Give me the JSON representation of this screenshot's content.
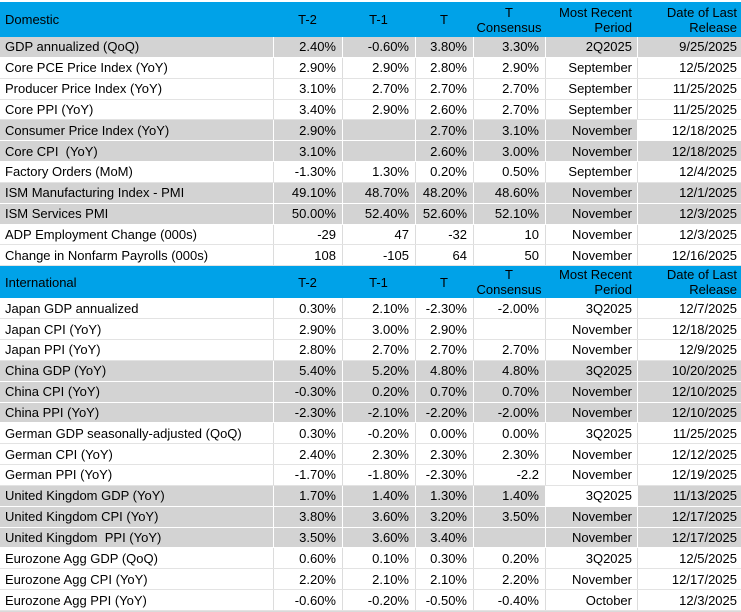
{
  "columns": {
    "t2": "T-2",
    "t1": "T-1",
    "t": "T",
    "consensus_line1": "T",
    "consensus_line2": "Consensus",
    "period_line1": "Most Recent",
    "period_line2": "Period",
    "release_line1": "Date of Last",
    "release_line2": "Release"
  },
  "colors": {
    "header_bg": "#00A2E8",
    "shaded_row_bg": "#D3D3D3",
    "text": "#000000"
  },
  "sections": [
    {
      "title": "Domestic",
      "rows": [
        {
          "label": "GDP annualized (QoQ)",
          "t2": "2.40%",
          "t1": "-0.60%",
          "t": "3.80%",
          "consensus": "3.30%",
          "period": "2Q2025",
          "release": "9/25/2025",
          "shaded": true
        },
        {
          "label": "Core PCE Price Index (YoY)",
          "t2": "2.90%",
          "t1": "2.90%",
          "t": "2.80%",
          "consensus": "2.90%",
          "period": "September",
          "release": "12/5/2025",
          "shaded": false
        },
        {
          "label": "Producer Price Index (YoY)",
          "t2": "3.10%",
          "t1": "2.70%",
          "t": "2.70%",
          "consensus": "2.70%",
          "period": "September",
          "release": "11/25/2025",
          "shaded": false
        },
        {
          "label": "Core PPI (YoY)",
          "t2": "3.40%",
          "t1": "2.90%",
          "t": "2.60%",
          "consensus": "2.70%",
          "period": "September",
          "release": "11/25/2025",
          "shaded": false
        },
        {
          "label": "Consumer Price Index (YoY)",
          "t2": "2.90%",
          "t1": "",
          "t": "2.70%",
          "consensus": "3.10%",
          "period": "November",
          "release": "12/18/2025",
          "shaded": true,
          "release_highlight": true
        },
        {
          "label": "Core CPI  (YoY)",
          "t2": "3.10%",
          "t1": "",
          "t": "2.60%",
          "consensus": "3.00%",
          "period": "November",
          "release": "12/18/2025",
          "shaded": true
        },
        {
          "label": "Factory Orders (MoM)",
          "t2": "-1.30%",
          "t1": "1.30%",
          "t": "0.20%",
          "consensus": "0.50%",
          "period": "September",
          "release": "12/4/2025",
          "shaded": false
        },
        {
          "label": "ISM Manufacturing Index - PMI",
          "t2": "49.10%",
          "t1": "48.70%",
          "t": "48.20%",
          "consensus": "48.60%",
          "period": "November",
          "release": "12/1/2025",
          "shaded": true
        },
        {
          "label": "ISM Services PMI",
          "t2": "50.00%",
          "t1": "52.40%",
          "t": "52.60%",
          "consensus": "52.10%",
          "period": "November",
          "release": "12/3/2025",
          "shaded": true
        },
        {
          "label": "ADP Employment Change (000s)",
          "t2": "-29",
          "t1": "47",
          "t": "-32",
          "consensus": "10",
          "period": "November",
          "release": "12/3/2025",
          "shaded": false
        },
        {
          "label": "Change in Nonfarm Payrolls (000s)",
          "t2": "108",
          "t1": "-105",
          "t": "64",
          "consensus": "50",
          "period": "November",
          "release": "12/16/2025",
          "shaded": false
        }
      ]
    },
    {
      "title": "International",
      "rows": [
        {
          "label": "Japan GDP annualized",
          "t2": "0.30%",
          "t1": "2.10%",
          "t": "-2.30%",
          "consensus": "-2.00%",
          "period": "3Q2025",
          "release": "12/7/2025",
          "shaded": false
        },
        {
          "label": "Japan CPI (YoY)",
          "t2": "2.90%",
          "t1": "3.00%",
          "t": "2.90%",
          "consensus": "",
          "period": "November",
          "release": "12/18/2025",
          "shaded": false
        },
        {
          "label": "Japan PPI (YoY)",
          "t2": "2.80%",
          "t1": "2.70%",
          "t": "2.70%",
          "consensus": "2.70%",
          "period": "November",
          "release": "12/9/2025",
          "shaded": false
        },
        {
          "label": "China GDP (YoY)",
          "t2": "5.40%",
          "t1": "5.20%",
          "t": "4.80%",
          "consensus": "4.80%",
          "period": "3Q2025",
          "release": "10/20/2025",
          "shaded": true
        },
        {
          "label": "China CPI (YoY)",
          "t2": "-0.30%",
          "t1": "0.20%",
          "t": "0.70%",
          "consensus": "0.70%",
          "period": "November",
          "release": "12/10/2025",
          "shaded": true
        },
        {
          "label": "China PPI (YoY)",
          "t2": "-2.30%",
          "t1": "-2.10%",
          "t": "-2.20%",
          "consensus": "-2.00%",
          "period": "November",
          "release": "12/10/2025",
          "shaded": true
        },
        {
          "label": "German GDP seasonally-adjusted (QoQ)",
          "t2": "0.30%",
          "t1": "-0.20%",
          "t": "0.00%",
          "consensus": "0.00%",
          "period": "3Q2025",
          "release": "11/25/2025",
          "shaded": false
        },
        {
          "label": "German CPI (YoY)",
          "t2": "2.40%",
          "t1": "2.30%",
          "t": "2.30%",
          "consensus": "2.30%",
          "period": "November",
          "release": "12/12/2025",
          "shaded": false
        },
        {
          "label": "German PPI (YoY)",
          "t2": "-1.70%",
          "t1": "-1.80%",
          "t": "-2.30%",
          "consensus": "-2.2",
          "period": "November",
          "release": "12/19/2025",
          "shaded": false
        },
        {
          "label": "United Kingdom GDP (YoY)",
          "t2": "1.70%",
          "t1": "1.40%",
          "t": "1.30%",
          "consensus": "1.40%",
          "period": "3Q2025",
          "release": "11/13/2025",
          "shaded": true,
          "period_highlight": true
        },
        {
          "label": "United Kingdom CPI (YoY)",
          "t2": "3.80%",
          "t1": "3.60%",
          "t": "3.20%",
          "consensus": "3.50%",
          "period": "November",
          "release": "12/17/2025",
          "shaded": true
        },
        {
          "label": "United Kingdom  PPI (YoY)",
          "t2": "3.50%",
          "t1": "3.60%",
          "t": "3.40%",
          "consensus": "",
          "period": "November",
          "release": "12/17/2025",
          "shaded": true
        },
        {
          "label": "Eurozone Agg GDP (QoQ)",
          "t2": "0.60%",
          "t1": "0.10%",
          "t": "0.30%",
          "consensus": "0.20%",
          "period": "3Q2025",
          "release": "12/5/2025",
          "shaded": false
        },
        {
          "label": "Eurozone Agg CPI (YoY)",
          "t2": "2.20%",
          "t1": "2.10%",
          "t": "2.10%",
          "consensus": "2.20%",
          "period": "November",
          "release": "12/17/2025",
          "shaded": false
        },
        {
          "label": "Eurozone Agg PPI (YoY)",
          "t2": "-0.60%",
          "t1": "-0.20%",
          "t": "-0.50%",
          "consensus": "-0.40%",
          "period": "October",
          "release": "12/3/2025",
          "shaded": false
        }
      ]
    }
  ]
}
